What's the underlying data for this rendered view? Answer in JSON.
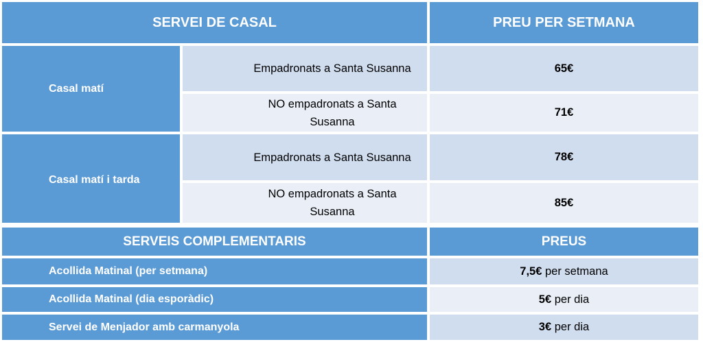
{
  "header": {
    "service_col": "SERVEI DE CASAL",
    "price_col": "PREU PER SETMANA"
  },
  "groups": [
    {
      "label": "Casal matí",
      "rows": [
        {
          "desc": "Empadronats a Santa Susanna",
          "price": "65€"
        },
        {
          "desc_line1": "NO empadronats a Santa",
          "desc_line2": "Susanna",
          "price": "71€"
        }
      ]
    },
    {
      "label": "Casal matí i tarda",
      "rows": [
        {
          "desc": "Empadronats a Santa Susanna",
          "price": "78€"
        },
        {
          "desc_line1": "NO empadronats a Santa",
          "desc_line2": "Susanna",
          "price": "85€"
        }
      ]
    }
  ],
  "complementary": {
    "header": "SERVEIS COMPLEMENTARIS",
    "price_header": "PREUS",
    "rows": [
      {
        "label": "Acollida Matinal (per setmana)",
        "price": "7,5€",
        "unit": " per setmana"
      },
      {
        "label": "Acollida Matinal (dia esporàdic)",
        "price": "5€",
        "unit": " per dia"
      },
      {
        "label": "Servei de Menjador amb carmanyola",
        "price": "3€",
        "unit": " per dia"
      }
    ]
  },
  "colors": {
    "header_blue": "#5b9bd5",
    "row_dark": "#d0ddef",
    "row_light": "#e9eef7"
  }
}
